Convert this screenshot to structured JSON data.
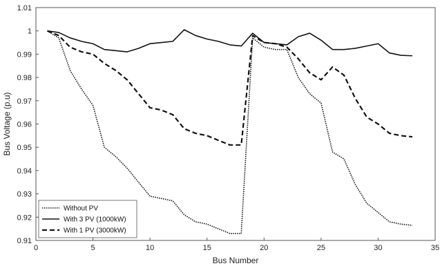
{
  "chart_data": {
    "type": "line",
    "title": "",
    "xlabel": "Bus Number",
    "ylabel": "Bus Voltage (p.u)",
    "xlim": [
      0,
      35
    ],
    "ylim": [
      0.91,
      1.01
    ],
    "xticks": [
      0,
      5,
      10,
      15,
      20,
      25,
      30,
      35
    ],
    "xtick_labels": [
      "0",
      "5",
      "10",
      "15",
      "20",
      "25",
      "30",
      "35"
    ],
    "yticks": [
      0.91,
      0.92,
      0.93,
      0.94,
      0.95,
      0.96,
      0.97,
      0.98,
      0.99,
      1.0,
      1.01
    ],
    "ytick_labels": [
      "0.91",
      "0.92",
      "0.93",
      "0.94",
      "0.95",
      "0.96",
      "0.97",
      "0.98",
      "0.99",
      "1",
      "1.01"
    ],
    "grid": false,
    "legend_position": "bottom-left",
    "x": [
      1,
      2,
      3,
      4,
      5,
      6,
      7,
      8,
      9,
      10,
      11,
      12,
      13,
      14,
      15,
      16,
      17,
      18,
      19,
      20,
      21,
      22,
      23,
      24,
      25,
      26,
      27,
      28,
      29,
      30,
      31,
      32,
      33
    ],
    "series": [
      {
        "name": "Without PV",
        "style": "dotted",
        "color": "#111111",
        "values": [
          1.0,
          0.997,
          0.983,
          0.975,
          0.968,
          0.95,
          0.946,
          0.941,
          0.935,
          0.929,
          0.928,
          0.927,
          0.921,
          0.918,
          0.917,
          0.915,
          0.913,
          0.913,
          0.997,
          0.993,
          0.992,
          0.992,
          0.98,
          0.973,
          0.969,
          0.948,
          0.945,
          0.934,
          0.926,
          0.922,
          0.918,
          0.917,
          0.9165
        ]
      },
      {
        "name": "With 3 PV (1000kW)",
        "style": "solid",
        "color": "#111111",
        "values": [
          1.0,
          0.9993,
          0.997,
          0.9955,
          0.9945,
          0.992,
          0.9915,
          0.991,
          0.9925,
          0.9945,
          0.995,
          0.9955,
          1.0005,
          0.998,
          0.9965,
          0.9955,
          0.994,
          0.9935,
          0.999,
          0.995,
          0.9945,
          0.994,
          0.9975,
          0.999,
          0.996,
          0.992,
          0.992,
          0.9925,
          0.9935,
          0.9945,
          0.9905,
          0.9895,
          0.9893
        ]
      },
      {
        "name": "With 1 PV (3000kW)",
        "style": "dashed",
        "color": "#111111",
        "values": [
          1.0,
          0.998,
          0.993,
          0.991,
          0.99,
          0.986,
          0.983,
          0.979,
          0.973,
          0.967,
          0.966,
          0.964,
          0.958,
          0.956,
          0.955,
          0.953,
          0.951,
          0.951,
          0.998,
          0.995,
          0.9945,
          0.993,
          0.988,
          0.982,
          0.979,
          0.9845,
          0.981,
          0.971,
          0.963,
          0.96,
          0.956,
          0.955,
          0.9545
        ]
      }
    ]
  }
}
